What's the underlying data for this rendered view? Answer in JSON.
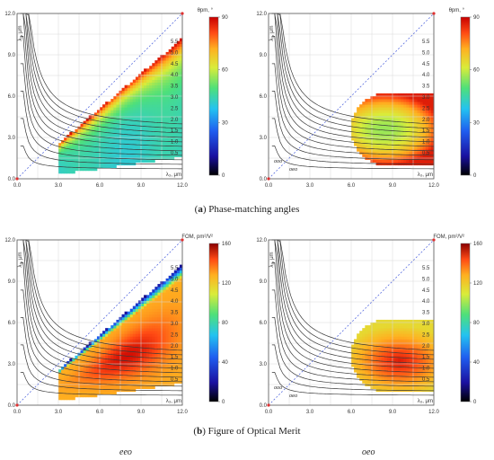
{
  "captions": {
    "a": {
      "letter": "a",
      "text": "Phase-matching angles"
    },
    "b": {
      "letter": "b",
      "text": "Figure of Optical Merit"
    }
  },
  "footer": {
    "left": "eeo",
    "right": "oeo"
  },
  "colors": {
    "axis": "#555555",
    "grid": "#d8d8d8",
    "contour": "#3a3a3a",
    "diagonal": "#5b6fe0",
    "origin_marker": "#e03030"
  },
  "chart_data": [
    {
      "type": "heatmap",
      "panel": "a-left",
      "title": "",
      "xlabel": "λ₃, μm",
      "ylabel": "λ₂, μm",
      "xlim": [
        0,
        12
      ],
      "ylim": [
        0,
        12
      ],
      "ticks": [
        "0.0",
        "3.0",
        "6.0",
        "9.0",
        "12.0"
      ],
      "colorbar": {
        "label": "θpm, °",
        "min": 0,
        "max": 90,
        "ticks": [
          "90",
          "60",
          "30",
          "0"
        ]
      },
      "contour_labels": [
        "5.5",
        "5.0",
        "4.5",
        "4.0",
        "3.5",
        "3.0",
        "2.5",
        "2.0",
        "1.5",
        "1.0",
        "0.5"
      ],
      "region": {
        "shape": "wedge",
        "x_from": 3.0,
        "x_to": 12.0,
        "max_slope": 0.85
      },
      "field": "theta_eeo",
      "contour_annotations": [],
      "grid": true
    },
    {
      "type": "heatmap",
      "panel": "a-right",
      "title": "",
      "xlabel": "λ₃, μm",
      "ylabel": "λ₂, μm",
      "xlim": [
        0,
        12
      ],
      "ylim": [
        0,
        12
      ],
      "ticks": [
        "0.0",
        "3.0",
        "6.0",
        "9.0",
        "12.0"
      ],
      "colorbar": {
        "label": "θpm, °",
        "min": 0,
        "max": 90,
        "ticks": [
          "90",
          "60",
          "30",
          "0"
        ]
      },
      "contour_labels": [
        "5.5",
        "5.0",
        "4.5",
        "4.0",
        "3.5",
        "3.0",
        "2.5",
        "2.0",
        "1.5",
        "1.0",
        "0.5"
      ],
      "region": {
        "shape": "blob",
        "x_from": 6.0,
        "x_to": 12.0,
        "y_center": 3.6,
        "half_height": 2.6
      },
      "field": "theta_oeo",
      "contour_annotations": [
        "ooo",
        "oeo"
      ],
      "grid": true
    },
    {
      "type": "heatmap",
      "panel": "b-left",
      "title": "",
      "xlabel": "λ₃, μm",
      "ylabel": "λ₂, μm",
      "xlim": [
        0,
        12
      ],
      "ylim": [
        0,
        12
      ],
      "ticks": [
        "0.0",
        "3.0",
        "6.0",
        "9.0",
        "12.0"
      ],
      "colorbar": {
        "label": "FOM, pm²/V²",
        "min": 0,
        "max": 160,
        "ticks": [
          "160",
          "120",
          "80",
          "40",
          "0"
        ]
      },
      "contour_labels": [
        "5.5",
        "5.0",
        "4.5",
        "4.0",
        "3.5",
        "3.0",
        "2.5",
        "2.0",
        "1.5",
        "1.0",
        "0.5"
      ],
      "region": {
        "shape": "wedge",
        "x_from": 3.0,
        "x_to": 12.0,
        "max_slope": 0.85
      },
      "field": "fom_eeo",
      "contour_annotations": [],
      "grid": true
    },
    {
      "type": "heatmap",
      "panel": "b-right",
      "title": "",
      "xlabel": "λ₃, μm",
      "ylabel": "λ₂, μm",
      "xlim": [
        0,
        12
      ],
      "ylim": [
        0,
        12
      ],
      "ticks": [
        "0.0",
        "3.0",
        "6.0",
        "9.0",
        "12.0"
      ],
      "colorbar": {
        "label": "FOM, pm²/V²",
        "min": 0,
        "max": 160,
        "ticks": [
          "160",
          "120",
          "80",
          "40",
          "0"
        ]
      },
      "contour_labels": [
        "5.5",
        "5.0",
        "4.5",
        "4.0",
        "3.5",
        "3.0",
        "2.5",
        "2.0",
        "1.5",
        "1.0",
        "0.5"
      ],
      "region": {
        "shape": "blob",
        "x_from": 6.0,
        "x_to": 12.0,
        "y_center": 3.6,
        "half_height": 2.6
      },
      "field": "fom_oeo",
      "contour_annotations": [
        "ooo",
        "oeo"
      ],
      "grid": true
    }
  ]
}
